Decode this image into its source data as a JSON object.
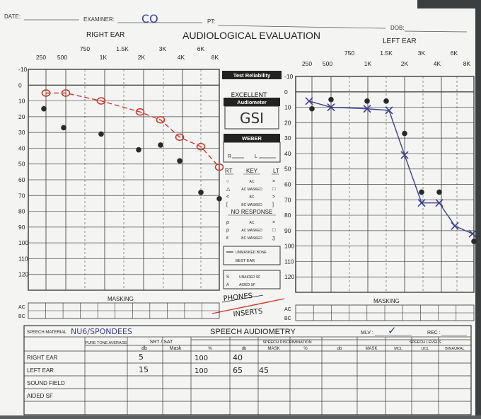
{
  "header": {
    "date_label": "DATE:",
    "examiner_label": "EXAMINER:",
    "examiner_value": "CO",
    "pt_label": "PT:",
    "dob_label": "DOB:",
    "title": "AUDIOLOGICAL EVALUATION",
    "right_ear_label": "RIGHT EAR",
    "left_ear_label": "LEFT EAR"
  },
  "axes": {
    "freq_top": [
      "750",
      "1.5K",
      "3K",
      "6K"
    ],
    "freq_bottom": [
      "250",
      "500",
      "1K",
      "2K",
      "4K",
      "8K"
    ],
    "db_labels": [
      "-10",
      "0",
      "10",
      "20",
      "30",
      "40",
      "50",
      "60",
      "70",
      "80",
      "90",
      "100",
      "110",
      "120"
    ]
  },
  "middle": {
    "test_reliability_label": "Test Reliability",
    "reliability_value": "EXCELLENT",
    "audiometer_label": "Audiometer",
    "audiometer_value": "GSI",
    "weber_label": "WEBER",
    "weber_r": "R",
    "weber_l": "L",
    "key_rt": "RT",
    "key_title": "KEY",
    "key_lt": "LT",
    "key_rows": [
      "AC",
      "AC MASKED",
      "BC",
      "BC MASKED"
    ],
    "no_response_label": "NO RESPONSE",
    "nr_rows": [
      "AC",
      "AC MASKED",
      "BC MASKED"
    ],
    "unmasked_bone": "UNMASKED BONE",
    "best_ear": "BEST EAR",
    "unaided_sf": "UNAIDED SF",
    "aided_sf": "AIDED SF",
    "phones": "PHONES",
    "inserts": "INSERTS"
  },
  "masking": {
    "label": "MASKING",
    "ac": "AC",
    "bc": "BC"
  },
  "speech": {
    "material_label": "SPEECH MATERIAL",
    "material_value": "NU6/SPONDEES",
    "title": "SPEECH AUDIOMETRY",
    "mlv_label": "MLV :",
    "mlv_value": "✓",
    "rec_label": "REC :",
    "col_pta": "PURE TONE AVERAGE",
    "col_srt": "SRT / SAT",
    "col_srt_db": "db",
    "col_srt_mask": "Mask",
    "discrimination_label": "SPEECH DISCRIMINATION",
    "disc_cols": [
      "%",
      "db",
      "MASK",
      "%",
      "db",
      "MASK"
    ],
    "levels_label": "SPEECH LEVELS",
    "level_cols": [
      "MCL",
      "UCL",
      "BINAURAL"
    ],
    "rows": [
      {
        "label": "RIGHT EAR",
        "srt": "5",
        "disc_pct": "100",
        "disc_db": "40",
        "disc_mask": ""
      },
      {
        "label": "LEFT EAR",
        "srt": "15",
        "disc_pct": "100",
        "disc_db": "65",
        "disc_mask": "45"
      },
      {
        "label": "SOUND FIELD",
        "srt": "",
        "disc_pct": "",
        "disc_db": "",
        "disc_mask": ""
      },
      {
        "label": "AIDED SF",
        "srt": "",
        "disc_pct": "",
        "disc_db": "",
        "disc_mask": ""
      }
    ]
  },
  "colors": {
    "right_ac": "#c8392b",
    "left_ac": "#3b3f8f",
    "bone": "#2a2a2a",
    "grid": "#4a4a4a"
  },
  "chart_data": [
    {
      "type": "line",
      "title": "RIGHT EAR",
      "ylim": [
        -10,
        120
      ],
      "ylabel": "",
      "xlabel": "",
      "series": [
        {
          "frequency": [
            "250",
            "500",
            "1K",
            "2K",
            "3K",
            "4K",
            "6K",
            "8K"
          ],
          "values": [
            5,
            5,
            10,
            17,
            22,
            33,
            39,
            52
          ]
        },
        {
          "frequency": [
            "250",
            "500",
            "1K",
            "2K",
            "3K",
            "4K",
            "6K",
            "8K"
          ],
          "values": [
            15,
            27,
            31,
            41,
            38,
            48,
            68,
            72
          ]
        }
      ]
    },
    {
      "type": "line",
      "title": "LEFT EAR",
      "ylim": [
        -10,
        120
      ],
      "ylabel": "",
      "xlabel": "",
      "series": [
        {
          "frequency": [
            "250",
            "500",
            "1K",
            "1.5K",
            "2K",
            "3K",
            "4K",
            "6K",
            "8K"
          ],
          "values": [
            6,
            10,
            11,
            12,
            41,
            72,
            72,
            87,
            92
          ]
        },
        {
          "frequency": [
            "250",
            "500",
            "1K",
            "1.5K",
            "2K",
            "3K",
            "4K",
            "8K"
          ],
          "values": [
            11,
            5,
            6,
            6,
            27,
            65,
            65,
            97
          ]
        }
      ]
    }
  ]
}
